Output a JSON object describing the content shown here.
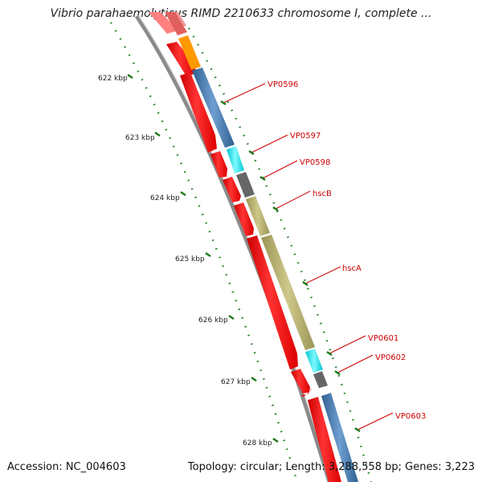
{
  "title": "Vibrio parahaemolyticus RIMD 2210633 chromosome I, complete ...",
  "footer": {
    "accession": "Accession: NC_004603",
    "summary": "Topology: circular; Length: 3,288,558 bp; Genes: 3,223"
  },
  "ruler": [
    {
      "label": "622 kbp"
    },
    {
      "label": "623 kbp"
    },
    {
      "label": "624 kbp"
    },
    {
      "label": "625 kbp"
    },
    {
      "label": "626 kbp"
    },
    {
      "label": "627 kbp"
    },
    {
      "label": "628 kbp"
    }
  ],
  "genes": [
    {
      "label": "VP0596",
      "color": "#4a7fb0"
    },
    {
      "label": "VP0597",
      "color": "#00e5ee"
    },
    {
      "label": "VP0598",
      "color": "#666666"
    },
    {
      "label": "hscB",
      "color": "#b5ae6e"
    },
    {
      "label": "hscA",
      "color": "#b5ae6e"
    },
    {
      "label": "VP0601",
      "color": "#00e5ee"
    },
    {
      "label": "VP0602",
      "color": "#666666"
    },
    {
      "label": "VP0603",
      "color": "#4a7fb0"
    }
  ],
  "colors": {
    "backbone": "#888888",
    "cds": "#ff0000",
    "orange_feature": "#ff9900",
    "tick": "#1a7a1a",
    "label": "#cc0000"
  }
}
